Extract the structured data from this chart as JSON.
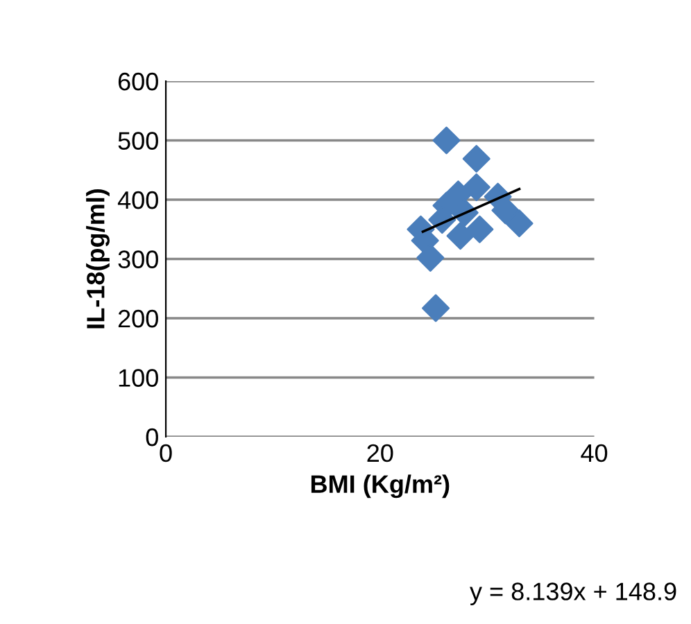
{
  "chart_data": {
    "type": "scatter",
    "xlabel": "BMI (Kg/m²)",
    "ylabel": "IL-18(pg/ml)",
    "xlim": [
      0,
      40
    ],
    "xticks": [
      0,
      20,
      40
    ],
    "ylim": [
      0,
      600
    ],
    "yticks": [
      0,
      100,
      200,
      300,
      400,
      500,
      600
    ],
    "grid": "y",
    "series": [
      {
        "color": "#4a7ebb",
        "marker": "diamond",
        "x": [
          26.2,
          29.0,
          29.0,
          27.3,
          26.2,
          31.0,
          31.7,
          33.0,
          23.8,
          24.2,
          25.8,
          26.9,
          27.5,
          29.3,
          27.9,
          24.7,
          25.2
        ],
        "values": [
          500,
          469,
          421,
          409,
          390,
          405,
          382,
          360,
          350,
          331,
          366,
          null,
          339,
          350,
          378,
          302,
          217
        ]
      },
      {
        "type": "line",
        "marker": "none",
        "color": "#000000",
        "x": [
          24,
          33
        ],
        "values": [
          346,
          418
        ]
      }
    ],
    "annotations": [
      "y = 8.139x + 148.9"
    ]
  }
}
